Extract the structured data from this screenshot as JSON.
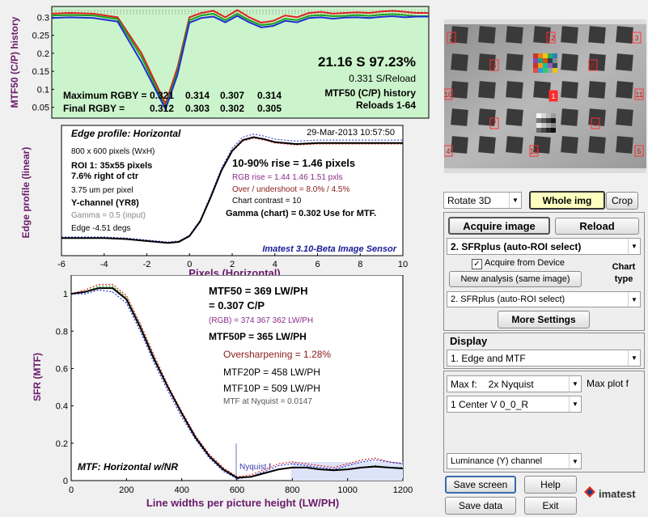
{
  "colors": {
    "history_bg": "#ccf4cc",
    "plot_bg": "#ffffff",
    "red": "#e02020",
    "green": "#1aa01a",
    "blue": "#2030d0",
    "black": "#000000",
    "purple": "#8a2a8a",
    "darkred": "#8b1a1a",
    "navy": "#1a1a9a"
  },
  "history": {
    "ylabel": "MTF50 (C/P) history",
    "yticks": [
      "0.3",
      "0.25",
      "0.2",
      "0.15",
      "0.1",
      "0.05"
    ],
    "big_text": "21.16 S  97.23%",
    "rate": "0.331 S/Reload",
    "title1": "MTF50 (C/P) history",
    "title2": "Reloads 1-64",
    "max_label": "Maximum RGBY =",
    "max_vals": [
      "0.321",
      "0.314",
      "0.307",
      "0.314"
    ],
    "final_label": "Final  RGBY =",
    "final_vals": [
      "0.312",
      "0.303",
      "0.302",
      "0.305"
    ]
  },
  "edge": {
    "ylabel": "Edge profile (linear)",
    "xlabel": "Pixels (Horizontal)",
    "xticks": [
      "-6",
      "-4",
      "-2",
      "0",
      "2",
      "4",
      "6",
      "8",
      "10"
    ],
    "title": "Edge profile: Horizontal",
    "date": "29-Mar-2013 10:57:50",
    "info": [
      "800 x 600 pixels (WxH)",
      "ROI 1:  35x55 pixels",
      "7.6% right of ctr",
      "3.75 um per pixel",
      "Y-channel  (YR8)",
      "Gamma = 0.5 (input)",
      "Edge -4.51 degs"
    ],
    "rise": "10-90% rise = 1.46 pixels",
    "rgb_rise": "RGB rise = 1.44  1.46  1.51 pxls",
    "overshoot": "Over / undershoot = 8.0% / 4.5%",
    "contrast": "Chart contrast = 10",
    "gamma": "Gamma (chart) = 0.302  Use for MTF.",
    "brand": "Imatest 3.10-Beta Image Sensor"
  },
  "mtf": {
    "ylabel": "SFR (MTF)",
    "xlabel": "Line widths per picture height (LW/PH)",
    "yticks": [
      "1",
      "0.8",
      "0.6",
      "0.4",
      "0.2",
      "0"
    ],
    "xticks": [
      "0",
      "200",
      "400",
      "600",
      "800",
      "1000",
      "1200"
    ],
    "mtf50": "MTF50 = 369 LW/PH",
    "cp": "= 0.307 C/P",
    "rgb": "(RGB) = 374  367  362 LW/PH",
    "mtf50p": "MTF50P = 365 LW/PH",
    "oversharp": "Oversharpening = 1.28%",
    "mtf20p": "MTF20P = 458 LW/PH",
    "mtf10p": "MTF10P = 509 LW/PH",
    "nyq": "MTF at Nyquist = 0.0147",
    "nyq_label": "Nyquist f",
    "caption": "MTF: Horizontal w/NR"
  },
  "chart_data": [
    {
      "type": "line",
      "title": "MTF50 (C/P) history",
      "ylabel": "MTF50 (C/P) history",
      "ylim": [
        0.02,
        0.33
      ],
      "x": [
        1,
        4,
        8,
        12,
        16,
        20,
        22,
        24,
        26,
        28,
        30,
        32,
        34,
        36,
        38,
        40,
        42,
        44,
        46,
        48,
        50,
        52,
        54,
        56,
        58,
        60,
        62,
        64
      ],
      "series": [
        {
          "name": "R",
          "values": [
            0.31,
            0.312,
            0.31,
            0.3,
            0.2,
            0.06,
            0.16,
            0.3,
            0.312,
            0.318,
            0.3,
            0.32,
            0.3,
            0.285,
            0.29,
            0.305,
            0.3,
            0.312,
            0.315,
            0.31,
            0.312,
            0.314,
            0.312,
            0.316,
            0.318,
            0.315,
            0.312,
            0.312
          ]
        },
        {
          "name": "G",
          "values": [
            0.305,
            0.306,
            0.305,
            0.295,
            0.19,
            0.05,
            0.15,
            0.292,
            0.305,
            0.31,
            0.292,
            0.31,
            0.292,
            0.278,
            0.282,
            0.296,
            0.292,
            0.304,
            0.306,
            0.303,
            0.304,
            0.306,
            0.304,
            0.307,
            0.309,
            0.306,
            0.303,
            0.303
          ]
        },
        {
          "name": "B",
          "values": [
            0.298,
            0.3,
            0.298,
            0.288,
            0.175,
            0.045,
            0.14,
            0.285,
            0.298,
            0.302,
            0.286,
            0.304,
            0.286,
            0.272,
            0.276,
            0.29,
            0.286,
            0.298,
            0.3,
            0.296,
            0.299,
            0.3,
            0.298,
            0.301,
            0.303,
            0.3,
            0.302,
            0.302
          ]
        }
      ]
    },
    {
      "type": "line",
      "title": "Edge profile: Horizontal",
      "xlabel": "Pixels (Horizontal)",
      "ylabel": "Edge profile (linear)",
      "xlim": [
        -6,
        10
      ],
      "x": [
        -6,
        -5,
        -4,
        -3,
        -2,
        -1,
        -0.5,
        0,
        0.5,
        1,
        1.5,
        2,
        2.5,
        3,
        3.5,
        4,
        5,
        6,
        7,
        8,
        9,
        10
      ],
      "series": [
        {
          "name": "Y",
          "values": [
            0.03,
            0.03,
            0.03,
            0.02,
            0.0,
            -0.02,
            -0.01,
            0.05,
            0.2,
            0.45,
            0.72,
            0.92,
            1.03,
            1.06,
            1.04,
            1.01,
            0.99,
            1.0,
            1.0,
            1.0,
            1.0,
            1.0
          ]
        }
      ]
    },
    {
      "type": "line",
      "title": "MTF: Horizontal w/NR",
      "xlabel": "Line widths per picture height (LW/PH)",
      "ylabel": "SFR (MTF)",
      "xlim": [
        0,
        1200
      ],
      "ylim": [
        0,
        1.1
      ],
      "x": [
        0,
        50,
        100,
        150,
        200,
        250,
        300,
        350,
        400,
        450,
        500,
        550,
        600,
        650,
        700,
        750,
        800,
        850,
        900,
        950,
        1000,
        1050,
        1100,
        1150,
        1200
      ],
      "series": [
        {
          "name": "Y",
          "values": [
            1.0,
            1.01,
            1.03,
            1.03,
            0.97,
            0.82,
            0.65,
            0.5,
            0.36,
            0.23,
            0.13,
            0.06,
            0.015,
            0.02,
            0.04,
            0.06,
            0.07,
            0.07,
            0.06,
            0.055,
            0.06,
            0.07,
            0.075,
            0.07,
            0.065
          ]
        },
        {
          "name": "R",
          "values": [
            1.0,
            1.02,
            1.05,
            1.05,
            0.99,
            0.84,
            0.67,
            0.51,
            0.37,
            0.24,
            0.14,
            0.07,
            0.02,
            0.03,
            0.06,
            0.09,
            0.1,
            0.09,
            0.08,
            0.07,
            0.09,
            0.11,
            0.12,
            0.1,
            0.09
          ]
        },
        {
          "name": "G",
          "values": [
            1.0,
            1.01,
            1.04,
            1.04,
            0.98,
            0.83,
            0.66,
            0.5,
            0.36,
            0.23,
            0.13,
            0.06,
            0.015,
            0.02,
            0.04,
            0.06,
            0.07,
            0.07,
            0.06,
            0.06,
            0.06,
            0.07,
            0.08,
            0.07,
            0.07
          ]
        },
        {
          "name": "B",
          "values": [
            1.0,
            1.0,
            1.02,
            1.01,
            0.95,
            0.8,
            0.63,
            0.48,
            0.34,
            0.22,
            0.12,
            0.05,
            0.01,
            0.02,
            0.05,
            0.08,
            0.09,
            0.08,
            0.07,
            0.06,
            0.08,
            0.1,
            0.11,
            0.1,
            0.09
          ]
        }
      ]
    }
  ],
  "chart_labels": [
    "2",
    "12",
    "3",
    "6",
    "8",
    "10",
    "1",
    "11",
    "7",
    "9",
    "4",
    "13",
    "5"
  ],
  "side": {
    "rotate": "Rotate 3D",
    "whole": "Whole img",
    "crop": "Crop",
    "acquire": "Acquire image",
    "reload": "Reload",
    "analysis": "2. SFRplus (auto-ROI select)",
    "acquire_device": "Acquire from Device",
    "chart_type": "Chart type",
    "new_analysis": "New analysis (same image)",
    "analysis2": "2. SFRplus (auto-ROI select)",
    "more": "More Settings",
    "display": "Display",
    "display_sel": "1.   Edge and MTF",
    "maxf_label": "Max f:",
    "maxf_val": "2x Nyquist",
    "maxplot": "Max plot f",
    "roi_sel": "1  Center  V     0_0_R",
    "channel": "Luminance (Y) channel",
    "save_screen": "Save screen",
    "help": "Help",
    "save_data": "Save data",
    "exit": "Exit",
    "logo": "imatest"
  }
}
